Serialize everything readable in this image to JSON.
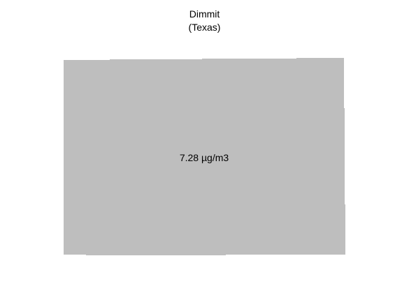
{
  "title": {
    "county": "Dimmit",
    "state": "(Texas)"
  },
  "region": {
    "name": "Dimmit",
    "value_label": "7.28 µg/m3",
    "value": 7.28,
    "unit": "µg/m3",
    "fill_color": "#bebebe"
  }
}
